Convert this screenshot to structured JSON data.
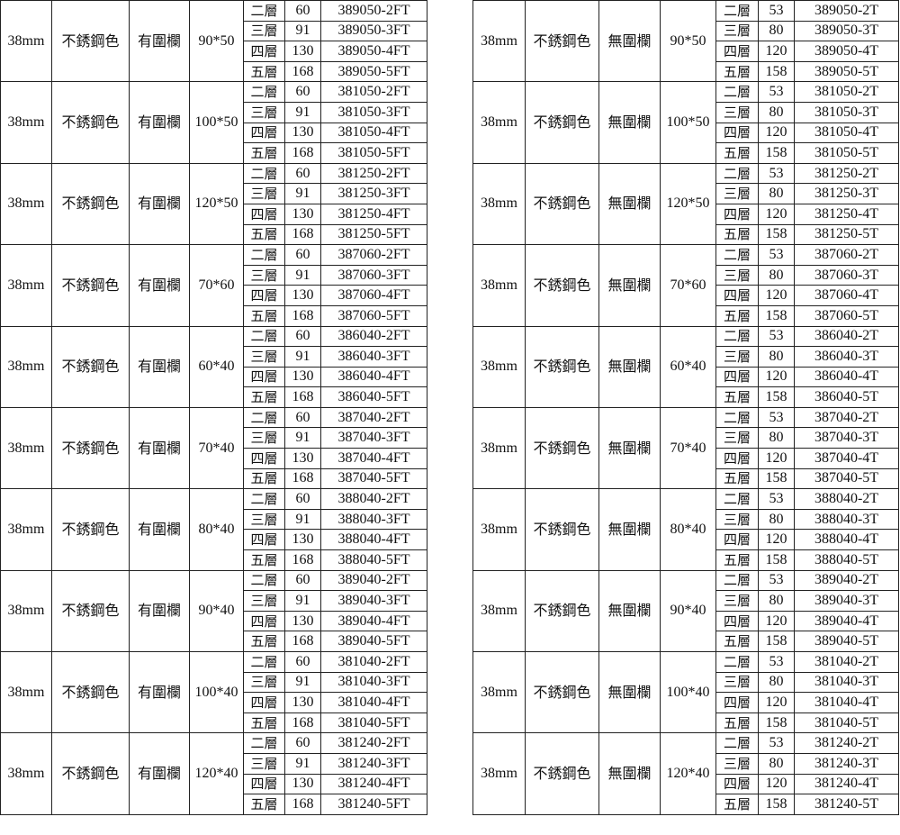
{
  "tables": [
    {
      "railing": "有圍欄",
      "groups": [
        {
          "diameter": "38mm",
          "color": "不銹鋼色",
          "size": "90*50",
          "rows": [
            [
              "二層",
              "60",
              "389050-2FT"
            ],
            [
              "三層",
              "91",
              "389050-3FT"
            ],
            [
              "四層",
              "130",
              "389050-4FT"
            ],
            [
              "五層",
              "168",
              "389050-5FT"
            ]
          ]
        },
        {
          "diameter": "38mm",
          "color": "不銹鋼色",
          "size": "100*50",
          "rows": [
            [
              "二層",
              "60",
              "381050-2FT"
            ],
            [
              "三層",
              "91",
              "381050-3FT"
            ],
            [
              "四層",
              "130",
              "381050-4FT"
            ],
            [
              "五層",
              "168",
              "381050-5FT"
            ]
          ]
        },
        {
          "diameter": "38mm",
          "color": "不銹鋼色",
          "size": "120*50",
          "rows": [
            [
              "二層",
              "60",
              "381250-2FT"
            ],
            [
              "三層",
              "91",
              "381250-3FT"
            ],
            [
              "四層",
              "130",
              "381250-4FT"
            ],
            [
              "五層",
              "168",
              "381250-5FT"
            ]
          ]
        },
        {
          "diameter": "38mm",
          "color": "不銹鋼色",
          "size": "70*60",
          "rows": [
            [
              "二層",
              "60",
              "387060-2FT"
            ],
            [
              "三層",
              "91",
              "387060-3FT"
            ],
            [
              "四層",
              "130",
              "387060-4FT"
            ],
            [
              "五層",
              "168",
              "387060-5FT"
            ]
          ]
        },
        {
          "diameter": "38mm",
          "color": "不銹鋼色",
          "size": "60*40",
          "rows": [
            [
              "二層",
              "60",
              "386040-2FT"
            ],
            [
              "三層",
              "91",
              "386040-3FT"
            ],
            [
              "四層",
              "130",
              "386040-4FT"
            ],
            [
              "五層",
              "168",
              "386040-5FT"
            ]
          ]
        },
        {
          "diameter": "38mm",
          "color": "不銹鋼色",
          "size": "70*40",
          "rows": [
            [
              "二層",
              "60",
              "387040-2FT"
            ],
            [
              "三層",
              "91",
              "387040-3FT"
            ],
            [
              "四層",
              "130",
              "387040-4FT"
            ],
            [
              "五層",
              "168",
              "387040-5FT"
            ]
          ]
        },
        {
          "diameter": "38mm",
          "color": "不銹鋼色",
          "size": "80*40",
          "rows": [
            [
              "二層",
              "60",
              "388040-2FT"
            ],
            [
              "三層",
              "91",
              "388040-3FT"
            ],
            [
              "四層",
              "130",
              "388040-4FT"
            ],
            [
              "五層",
              "168",
              "388040-5FT"
            ]
          ]
        },
        {
          "diameter": "38mm",
          "color": "不銹鋼色",
          "size": "90*40",
          "rows": [
            [
              "二層",
              "60",
              "389040-2FT"
            ],
            [
              "三層",
              "91",
              "389040-3FT"
            ],
            [
              "四層",
              "130",
              "389040-4FT"
            ],
            [
              "五層",
              "168",
              "389040-5FT"
            ]
          ]
        },
        {
          "diameter": "38mm",
          "color": "不銹鋼色",
          "size": "100*40",
          "rows": [
            [
              "二層",
              "60",
              "381040-2FT"
            ],
            [
              "三層",
              "91",
              "381040-3FT"
            ],
            [
              "四層",
              "130",
              "381040-4FT"
            ],
            [
              "五層",
              "168",
              "381040-5FT"
            ]
          ]
        },
        {
          "diameter": "38mm",
          "color": "不銹鋼色",
          "size": "120*40",
          "rows": [
            [
              "二層",
              "60",
              "381240-2FT"
            ],
            [
              "三層",
              "91",
              "381240-3FT"
            ],
            [
              "四層",
              "130",
              "381240-4FT"
            ],
            [
              "五層",
              "168",
              "381240-5FT"
            ]
          ]
        }
      ]
    },
    {
      "railing": "無圍欄",
      "groups": [
        {
          "diameter": "38mm",
          "color": "不銹鋼色",
          "size": "90*50",
          "rows": [
            [
              "二層",
              "53",
              "389050-2T"
            ],
            [
              "三層",
              "80",
              "389050-3T"
            ],
            [
              "四層",
              "120",
              "389050-4T"
            ],
            [
              "五層",
              "158",
              "389050-5T"
            ]
          ]
        },
        {
          "diameter": "38mm",
          "color": "不銹鋼色",
          "size": "100*50",
          "rows": [
            [
              "二層",
              "53",
              "381050-2T"
            ],
            [
              "三層",
              "80",
              "381050-3T"
            ],
            [
              "四層",
              "120",
              "381050-4T"
            ],
            [
              "五層",
              "158",
              "381050-5T"
            ]
          ]
        },
        {
          "diameter": "38mm",
          "color": "不銹鋼色",
          "size": "120*50",
          "rows": [
            [
              "二層",
              "53",
              "381250-2T"
            ],
            [
              "三層",
              "80",
              "381250-3T"
            ],
            [
              "四層",
              "120",
              "381250-4T"
            ],
            [
              "五層",
              "158",
              "381250-5T"
            ]
          ]
        },
        {
          "diameter": "38mm",
          "color": "不銹鋼色",
          "size": "70*60",
          "rows": [
            [
              "二層",
              "53",
              "387060-2T"
            ],
            [
              "三層",
              "80",
              "387060-3T"
            ],
            [
              "四層",
              "120",
              "387060-4T"
            ],
            [
              "五層",
              "158",
              "387060-5T"
            ]
          ]
        },
        {
          "diameter": "38mm",
          "color": "不銹鋼色",
          "size": "60*40",
          "rows": [
            [
              "二層",
              "53",
              "386040-2T"
            ],
            [
              "三層",
              "80",
              "386040-3T"
            ],
            [
              "四層",
              "120",
              "386040-4T"
            ],
            [
              "五層",
              "158",
              "386040-5T"
            ]
          ]
        },
        {
          "diameter": "38mm",
          "color": "不銹鋼色",
          "size": "70*40",
          "rows": [
            [
              "二層",
              "53",
              "387040-2T"
            ],
            [
              "三層",
              "80",
              "387040-3T"
            ],
            [
              "四層",
              "120",
              "387040-4T"
            ],
            [
              "五層",
              "158",
              "387040-5T"
            ]
          ]
        },
        {
          "diameter": "38mm",
          "color": "不銹鋼色",
          "size": "80*40",
          "rows": [
            [
              "二層",
              "53",
              "388040-2T"
            ],
            [
              "三層",
              "80",
              "388040-3T"
            ],
            [
              "四層",
              "120",
              "388040-4T"
            ],
            [
              "五層",
              "158",
              "388040-5T"
            ]
          ]
        },
        {
          "diameter": "38mm",
          "color": "不銹鋼色",
          "size": "90*40",
          "rows": [
            [
              "二層",
              "53",
              "389040-2T"
            ],
            [
              "三層",
              "80",
              "389040-3T"
            ],
            [
              "四層",
              "120",
              "389040-4T"
            ],
            [
              "五層",
              "158",
              "389040-5T"
            ]
          ]
        },
        {
          "diameter": "38mm",
          "color": "不銹鋼色",
          "size": "100*40",
          "rows": [
            [
              "二層",
              "53",
              "381040-2T"
            ],
            [
              "三層",
              "80",
              "381040-3T"
            ],
            [
              "四層",
              "120",
              "381040-4T"
            ],
            [
              "五層",
              "158",
              "381040-5T"
            ]
          ]
        },
        {
          "diameter": "38mm",
          "color": "不銹鋼色",
          "size": "120*40",
          "rows": [
            [
              "二層",
              "53",
              "381240-2T"
            ],
            [
              "三層",
              "80",
              "381240-3T"
            ],
            [
              "四層",
              "120",
              "381240-4T"
            ],
            [
              "五層",
              "158",
              "381240-5T"
            ]
          ]
        }
      ]
    }
  ]
}
